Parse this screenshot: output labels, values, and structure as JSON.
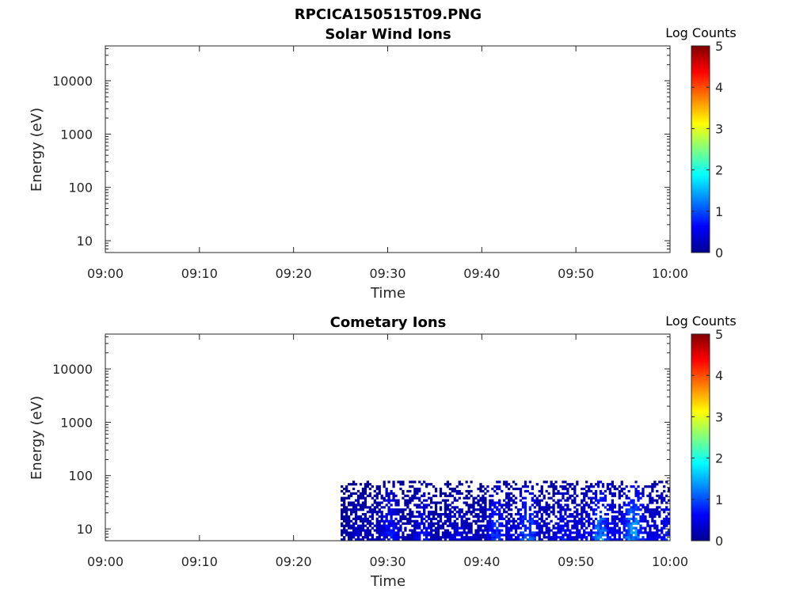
{
  "figure": {
    "title": "RPCICA150515T09.PNG"
  },
  "colorbar": {
    "label": "Log Counts",
    "ticks": [
      "0",
      "1",
      "2",
      "3",
      "4",
      "5"
    ],
    "range": [
      0,
      5
    ],
    "colormap": "jet"
  },
  "chart_data": [
    {
      "type": "heatmap",
      "title": "Solar Wind Ions",
      "xlabel": "Time",
      "ylabel": "Energy (eV)",
      "x_ticks": [
        "09:00",
        "09:10",
        "09:20",
        "09:30",
        "09:40",
        "09:50",
        "10:00"
      ],
      "y_ticks": [
        "10",
        "100",
        "1000",
        "10000"
      ],
      "y_scale": "log",
      "ylim": [
        6,
        45000
      ],
      "xlim": [
        "09:00",
        "10:00"
      ],
      "color_range": [
        0,
        5
      ],
      "data_present": false,
      "intensity_profile": []
    },
    {
      "type": "heatmap",
      "title": "Cometary Ions",
      "xlabel": "Time",
      "ylabel": "Energy (eV)",
      "x_ticks": [
        "09:00",
        "09:10",
        "09:20",
        "09:30",
        "09:40",
        "09:50",
        "10:00"
      ],
      "y_ticks": [
        "10",
        "100",
        "1000",
        "10000"
      ],
      "y_scale": "log",
      "ylim": [
        6,
        45000
      ],
      "xlim": [
        "09:00",
        "10:00"
      ],
      "color_range": [
        0,
        5
      ],
      "data_present": true,
      "data_energy_range": [
        6,
        80
      ],
      "intensity_profile": [
        {
          "time": "09:25",
          "peak_log_counts": 0.5,
          "max_energy": 60
        },
        {
          "time": "09:27",
          "peak_log_counts": 1.0,
          "max_energy": 80
        },
        {
          "time": "09:29",
          "peak_log_counts": 1.1,
          "max_energy": 80
        },
        {
          "time": "09:31",
          "peak_log_counts": 0.9,
          "max_energy": 75
        },
        {
          "time": "09:33",
          "peak_log_counts": 0.9,
          "max_energy": 75
        },
        {
          "time": "09:35",
          "peak_log_counts": 0.8,
          "max_energy": 70
        },
        {
          "time": "09:37",
          "peak_log_counts": 1.4,
          "max_energy": 80
        },
        {
          "time": "09:39",
          "peak_log_counts": 1.0,
          "max_energy": 80
        },
        {
          "time": "09:41",
          "peak_log_counts": 1.3,
          "max_energy": 80
        },
        {
          "time": "09:43",
          "peak_log_counts": 1.6,
          "max_energy": 80
        },
        {
          "time": "09:45",
          "peak_log_counts": 1.3,
          "max_energy": 80
        },
        {
          "time": "09:47",
          "peak_log_counts": 1.4,
          "max_energy": 80
        },
        {
          "time": "09:49",
          "peak_log_counts": 1.6,
          "max_energy": 80
        },
        {
          "time": "09:51",
          "peak_log_counts": 1.9,
          "max_energy": 80
        },
        {
          "time": "09:53",
          "peak_log_counts": 2.4,
          "max_energy": 80
        },
        {
          "time": "09:55",
          "peak_log_counts": 1.6,
          "max_energy": 80
        },
        {
          "time": "09:57",
          "peak_log_counts": 1.8,
          "max_energy": 80
        },
        {
          "time": "09:59",
          "peak_log_counts": 1.5,
          "max_energy": 80
        }
      ]
    }
  ]
}
